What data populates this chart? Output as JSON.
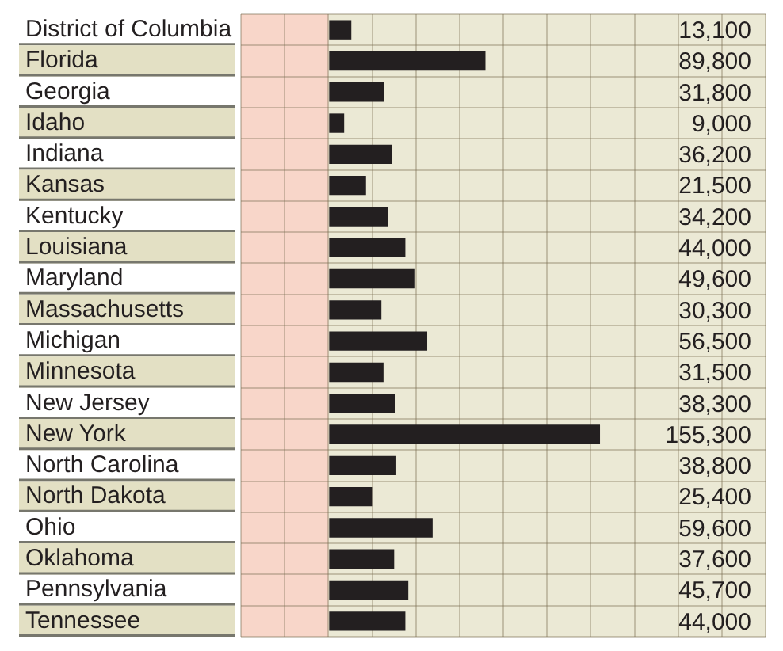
{
  "chart_data": {
    "type": "bar",
    "orientation": "horizontal",
    "categories": [
      "District of Columbia",
      "Florida",
      "Georgia",
      "Idaho",
      "Indiana",
      "Kansas",
      "Kentucky",
      "Louisiana",
      "Maryland",
      "Massachusetts",
      "Michigan",
      "Minnesota",
      "New Jersey",
      "New York",
      "North Carolina",
      "North Dakota",
      "Ohio",
      "Oklahoma",
      "Pennsylvania",
      "Tennessee"
    ],
    "values": [
      13100,
      89800,
      31800,
      9000,
      36200,
      21500,
      34200,
      44000,
      49600,
      30300,
      56500,
      31500,
      38300,
      155300,
      38800,
      25400,
      59600,
      37600,
      45700,
      44000
    ],
    "value_labels": [
      "13,100",
      "89,800",
      "31,800",
      "9,000",
      "36,200",
      "21,500",
      "34,200",
      "44,000",
      "49,600",
      "30,300",
      "56,500",
      "31,500",
      "38,300",
      "155,300",
      "38,800",
      "25,400",
      "59,600",
      "37,600",
      "45,700",
      "44,000"
    ],
    "color": "#231f20",
    "xlim": [
      -50000,
      250000
    ],
    "xticks": [
      {
        "value": -50000,
        "label": null
      },
      {
        "value": -25000,
        "label": null
      },
      {
        "value": 0,
        "label": null
      },
      {
        "value": 25000,
        "label": null
      },
      {
        "value": 50000,
        "label": null
      },
      {
        "value": 75000,
        "label": null
      },
      {
        "value": 100000,
        "label": null
      },
      {
        "value": 125000,
        "label": null
      },
      {
        "value": 150000,
        "label": null
      },
      {
        "value": 175000,
        "label": null
      },
      {
        "value": 200000,
        "label": null
      },
      {
        "value": 225000,
        "label": null
      },
      {
        "value": 250000,
        "label": null
      }
    ],
    "bands": [
      {
        "axis": "x",
        "from": -50000,
        "to": 0,
        "color": "#f8d6c9"
      }
    ],
    "grid": true,
    "tick_labels": "y"
  }
}
